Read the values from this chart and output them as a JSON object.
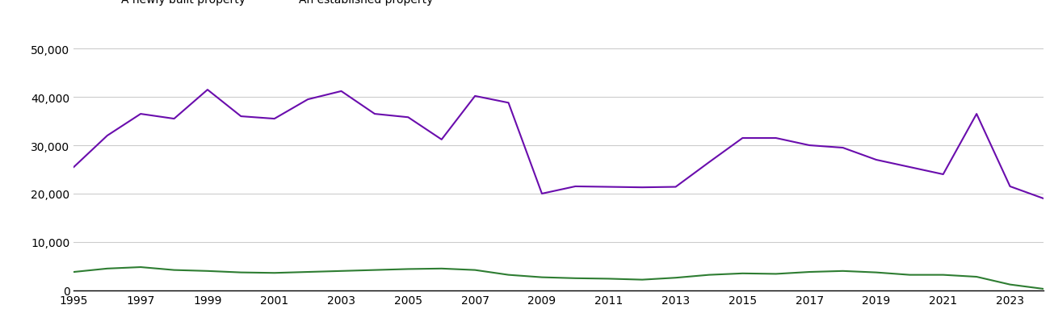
{
  "years": [
    1995,
    1996,
    1997,
    1998,
    1999,
    2000,
    2001,
    2002,
    2003,
    2004,
    2005,
    2006,
    2007,
    2008,
    2009,
    2010,
    2011,
    2012,
    2013,
    2014,
    2015,
    2016,
    2017,
    2018,
    2019,
    2020,
    2021,
    2022,
    2023,
    2024
  ],
  "new_homes": [
    3800,
    4500,
    4800,
    4200,
    4000,
    3700,
    3600,
    3800,
    4000,
    4200,
    4400,
    4500,
    4200,
    3200,
    2700,
    2500,
    2400,
    2200,
    2600,
    3200,
    3500,
    3400,
    3800,
    4000,
    3700,
    3200,
    3200,
    2800,
    1200,
    300
  ],
  "established_homes": [
    25500,
    32000,
    36500,
    35500,
    41500,
    36000,
    35500,
    39500,
    41200,
    36500,
    35800,
    31200,
    40200,
    38800,
    20000,
    21500,
    21400,
    21300,
    21400,
    26500,
    31500,
    31500,
    30000,
    29500,
    27000,
    25500,
    24000,
    36500,
    21500,
    19000
  ],
  "new_color": "#2e7d32",
  "established_color": "#6a0dad",
  "ylim": [
    0,
    52000
  ],
  "yticks": [
    0,
    10000,
    20000,
    30000,
    40000,
    50000
  ],
  "background_color": "#ffffff",
  "grid_color": "#cccccc",
  "line_width": 1.5,
  "legend_fontsize": 10,
  "tick_fontsize": 10
}
